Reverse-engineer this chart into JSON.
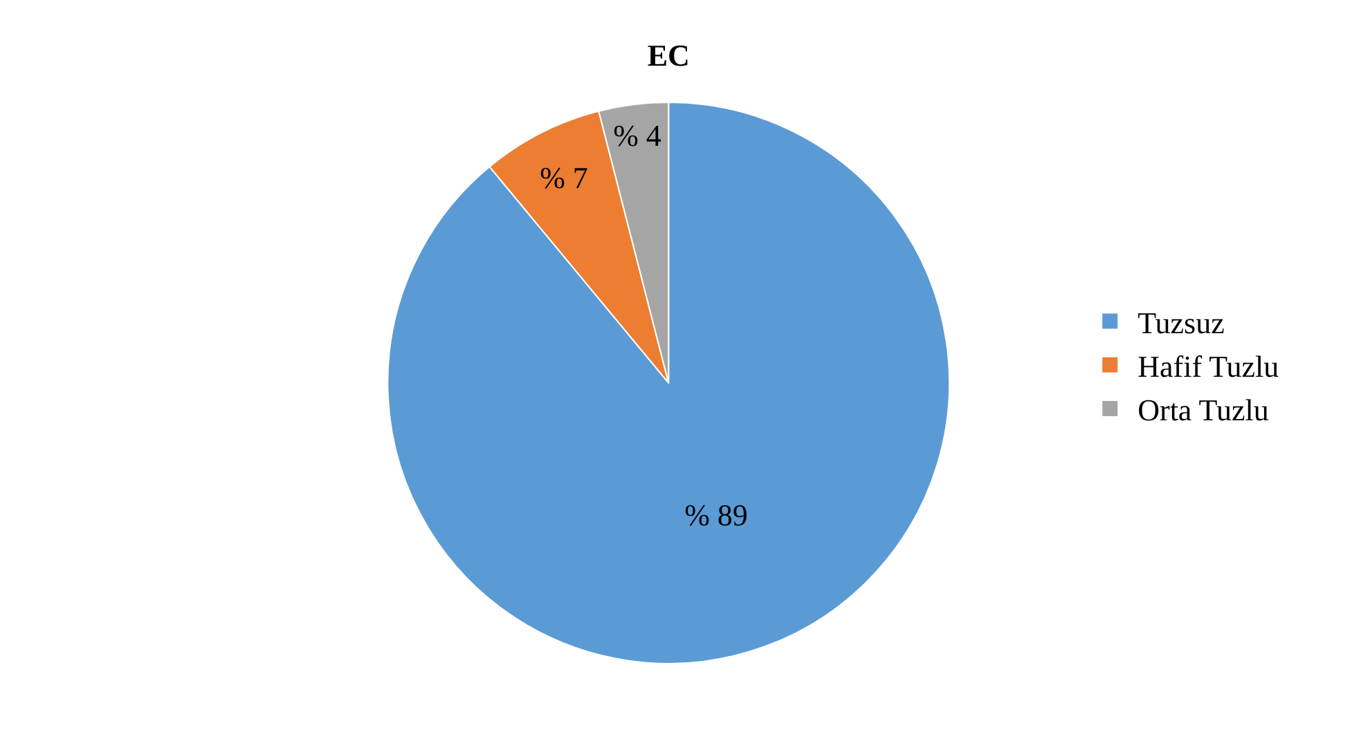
{
  "chart_data": {
    "type": "pie",
    "title": "EC",
    "categories": [
      "Tuzsuz",
      "Hafif Tuzlu",
      "Orta Tuzlu"
    ],
    "values": [
      89,
      7,
      4
    ],
    "value_labels": [
      "% 89",
      "% 7",
      "% 4"
    ],
    "colors": [
      "#5b9bd5",
      "#ed7d31",
      "#a5a5a5"
    ],
    "legend": "right"
  }
}
